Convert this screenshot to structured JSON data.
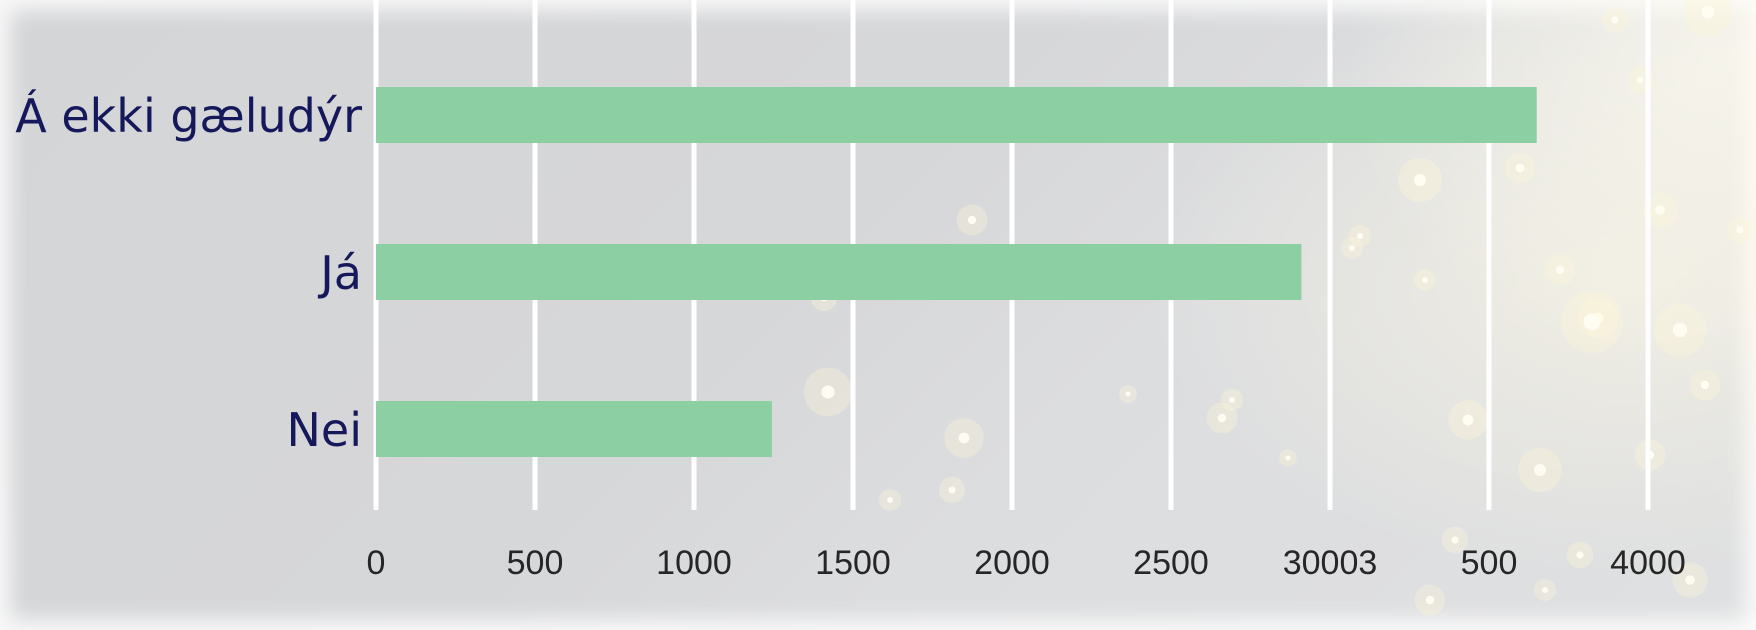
{
  "chart_data": {
    "type": "bar",
    "orientation": "horizontal",
    "categories": [
      "Á ekki gæludýr",
      "Já",
      "Nei"
    ],
    "values": [
      3650,
      2910,
      1245
    ],
    "xlim": [
      0,
      4000
    ],
    "x_ticks": [
      "0",
      "500",
      "1000",
      "1500",
      "2000",
      "2500",
      "30003",
      "500",
      "4000"
    ],
    "grid": "vertical",
    "title": "",
    "xlabel": "",
    "ylabel": "",
    "colors": {
      "bar": "#8bcfa2",
      "grid": "#ffffff",
      "category_text": "#15185a",
      "tick_text": "#262626"
    }
  }
}
